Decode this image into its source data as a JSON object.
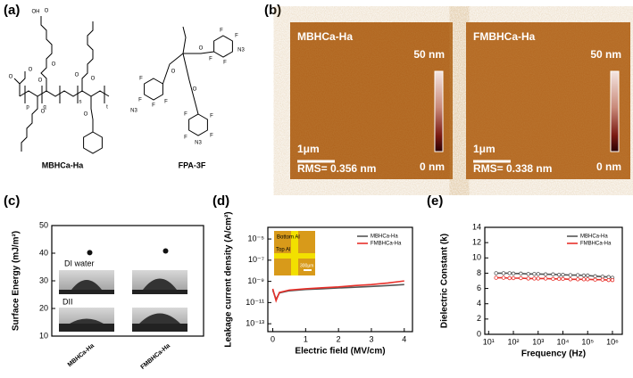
{
  "panel_labels": [
    "(a)",
    "(b)",
    "(c)",
    "(d)",
    "(e)"
  ],
  "structures": {
    "mbhca": {
      "name": "MBHCa-Ha",
      "atoms": [
        "OH",
        "O",
        "O",
        "O",
        "O",
        "O",
        "O",
        "O",
        "O",
        "O",
        "p",
        "q",
        "s",
        "t"
      ]
    },
    "fpa": {
      "name": "FPA-3F",
      "atoms": [
        "F",
        "F",
        "F",
        "F",
        "N3",
        "F",
        "F",
        "F",
        "F",
        "N3",
        "F",
        "F",
        "F",
        "F",
        "N3",
        "O",
        "O",
        "O"
      ]
    }
  },
  "afm": [
    {
      "name": "MBHCa-Ha",
      "scale_top": "50 nm",
      "scale_bottom": "0 nm",
      "scale_bar": "1μm",
      "rms": "RMS= 0.356 nm"
    },
    {
      "name": "FMBHCa-Ha",
      "scale_top": "50 nm",
      "scale_bottom": "0 nm",
      "scale_bar": "1μm",
      "rms": "RMS= 0.338 nm"
    }
  ],
  "chart_data": [
    {
      "type": "scatter",
      "ylabel": "Surface Energy (mJ/m²)",
      "categories": [
        "MBHCa-Ha",
        "FMBHCa-Ha"
      ],
      "values": [
        40.2,
        40.8
      ],
      "color": "#111111",
      "ylim": [
        10,
        50
      ],
      "yticks": [
        10,
        20,
        30,
        40,
        50
      ],
      "annotations": [
        "DI water",
        "DII"
      ]
    },
    {
      "type": "line",
      "xlabel": "Electric field (MV/cm)",
      "ylabel": "Leakage current density (A/cm²)",
      "x": [
        0,
        0.1,
        0.2,
        0.5,
        1,
        1.5,
        2,
        2.5,
        3,
        3.5,
        4
      ],
      "series": [
        {
          "name": "MBHCa-Ha",
          "color": "#555555",
          "values": [
            1.5e-10,
            2e-11,
            8e-11,
            1.3e-10,
            1.7e-10,
            2e-10,
            2.4e-10,
            2.8e-10,
            3.3e-10,
            4e-10,
            5e-10
          ]
        },
        {
          "name": "FMBHCa-Ha",
          "color": "#e8302a",
          "values": [
            2e-10,
            1.5e-11,
            9e-11,
            1.5e-10,
            2e-10,
            2.5e-10,
            3e-10,
            4e-10,
            5e-10,
            7e-10,
            1.1e-09
          ]
        }
      ],
      "xlim": [
        -0.15,
        4.25
      ],
      "xticks": [
        0,
        1,
        2,
        3,
        4
      ],
      "ylim": [
        1.8e-14,
        0.000126
      ],
      "ylog": true,
      "yticks": [
        {
          "value": 1e-13,
          "label": "10⁻¹³"
        },
        {
          "value": 1e-11,
          "label": "10⁻¹¹"
        },
        {
          "value": 1e-09,
          "label": "10⁻⁹"
        },
        {
          "value": 1e-07,
          "label": "10⁻⁷"
        },
        {
          "value": 1e-05,
          "label": "10⁻⁵"
        }
      ],
      "legend": "upper right",
      "annotations": [
        "Bottom Al",
        "Top Al",
        "300μm"
      ]
    },
    {
      "type": "line",
      "xlabel": "Frequency (Hz)",
      "ylabel": "Dielectric Constant  (k)",
      "markers": true,
      "x": [
        20,
        40,
        70,
        100,
        200,
        400,
        700,
        1000,
        2000,
        4000,
        7000,
        10000,
        20000,
        40000,
        70000,
        100000,
        200000,
        400000,
        700000,
        1000000
      ],
      "series": [
        {
          "name": "MBHCa-Ha",
          "color": "#555555",
          "values": [
            8.0,
            8.0,
            8.0,
            7.95,
            7.95,
            7.9,
            7.9,
            7.9,
            7.85,
            7.85,
            7.8,
            7.8,
            7.75,
            7.75,
            7.7,
            7.7,
            7.6,
            7.55,
            7.5,
            7.4
          ]
        },
        {
          "name": "FMBHCa-Ha",
          "color": "#e8302a",
          "values": [
            7.4,
            7.4,
            7.35,
            7.35,
            7.35,
            7.3,
            7.3,
            7.3,
            7.3,
            7.25,
            7.25,
            7.25,
            7.2,
            7.2,
            7.2,
            7.2,
            7.15,
            7.15,
            7.1,
            7.1
          ]
        }
      ],
      "xlim": [
        7,
        2500000
      ],
      "xlog": true,
      "xticks": [
        {
          "value": 10,
          "label": "10¹"
        },
        {
          "value": 100,
          "label": "10²"
        },
        {
          "value": 1000,
          "label": "10³"
        },
        {
          "value": 10000,
          "label": "10⁴"
        },
        {
          "value": 100000,
          "label": "10⁵"
        },
        {
          "value": 1000000,
          "label": "10⁶"
        }
      ],
      "ylim": [
        0,
        14
      ],
      "yticks": [
        0,
        2,
        4,
        6,
        8,
        10,
        12,
        14
      ],
      "legend": "upper right"
    }
  ]
}
